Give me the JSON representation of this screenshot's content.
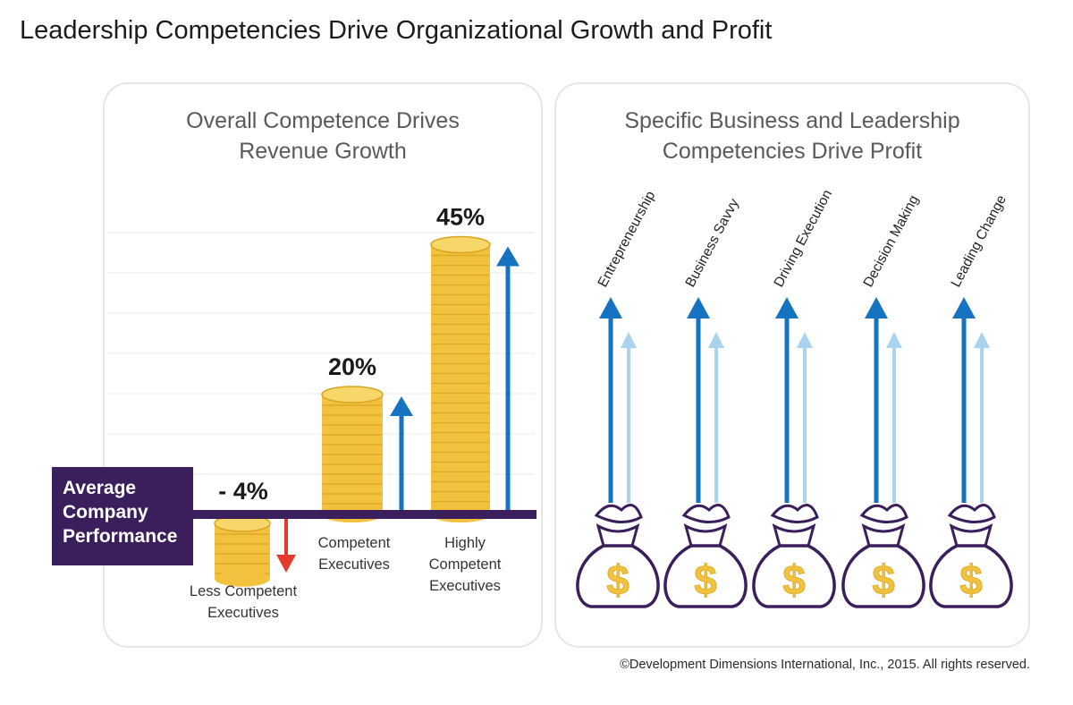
{
  "title": "Leadership Competencies Drive Organizational Growth and Profit",
  "copyright": "©Development Dimensions International, Inc., 2015. All rights reserved.",
  "left_panel": {
    "title_lines": [
      "Overall Competence Drives",
      "Revenue Growth"
    ],
    "baseline_lines": [
      "Average",
      "Company",
      "Performance"
    ]
  },
  "right_panel": {
    "title_lines": [
      "Specific Business and Leadership",
      "Competencies Drive Profit"
    ],
    "currency_symbol": "$"
  },
  "colors": {
    "coin": "#f2c23e",
    "coin_edge": "#d9a520",
    "arrow_up": "#1673c1",
    "arrow_up_light": "#a9d4ef",
    "arrow_down": "#e23b2e",
    "baseline": "#3b1f5c",
    "bag_outline": "#3b1f5c"
  },
  "chart_data": [
    {
      "type": "bar",
      "title": "Overall Competence Drives Revenue Growth",
      "categories": [
        "Less Competent Executives",
        "Competent Executives",
        "Highly Competent Executives"
      ],
      "category_label_lines": [
        [
          "Less Competent",
          "Executives"
        ],
        [
          "Competent",
          "Executives"
        ],
        [
          "Highly",
          "Competent",
          "Executives"
        ]
      ],
      "values": [
        -4,
        20,
        45
      ],
      "value_labels": [
        "- 4%",
        "20%",
        "45%"
      ],
      "unit": "%",
      "baseline_label": "Average Company Performance",
      "ylim": [
        -8,
        50
      ],
      "grid": true
    },
    {
      "type": "bar",
      "title": "Specific Business and Leadership Competencies Drive Profit",
      "categories": [
        "Entrepreneurship",
        "Business Savvy",
        "Driving Execution",
        "Decision Making",
        "Leading Change"
      ],
      "series": [
        {
          "values": [
            1.0,
            1.0,
            1.0,
            1.0,
            1.0
          ]
        },
        {
          "values": [
            0.7,
            0.7,
            0.7,
            0.7,
            0.7
          ]
        }
      ]
    }
  ]
}
